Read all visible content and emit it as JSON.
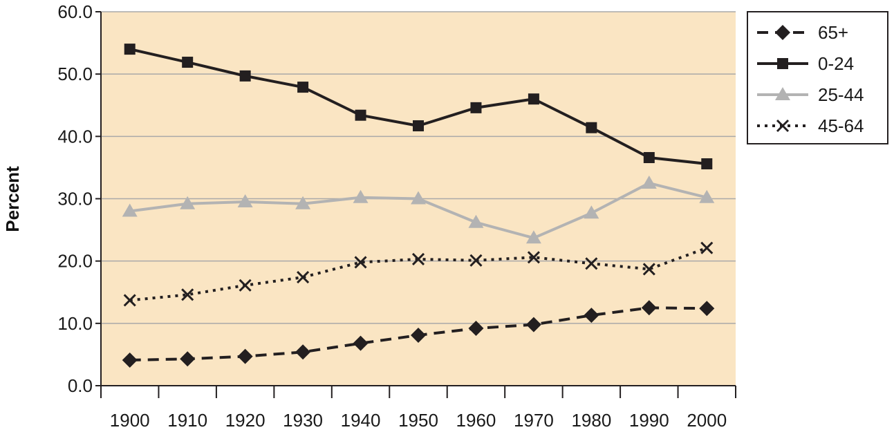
{
  "colors": {
    "plot_background": "#fae5c3",
    "gridline": "#a9a9a9",
    "axis": "#231f20",
    "dark_series": "#231f20",
    "light_series": "#b3b3b3"
  },
  "chart_data": {
    "type": "line",
    "title": "",
    "xlabel": "",
    "ylabel": "Percent",
    "ylim": [
      0,
      60
    ],
    "yticks": [
      "0.0",
      "10.0",
      "20.0",
      "30.0",
      "40.0",
      "50.0",
      "60.0"
    ],
    "x": [
      "1900",
      "1910",
      "1920",
      "1930",
      "1940",
      "1950",
      "1960",
      "1970",
      "1980",
      "1990",
      "2000"
    ],
    "grid": true,
    "legend_position": "top-right",
    "series": [
      {
        "name": "65+",
        "values": [
          4.1,
          4.3,
          4.7,
          5.4,
          6.8,
          8.1,
          9.2,
          9.8,
          11.3,
          12.5,
          12.4
        ],
        "color": "#231f20",
        "line_style": "dashed",
        "marker": "diamond"
      },
      {
        "name": "0-24",
        "values": [
          54.0,
          51.9,
          49.7,
          47.9,
          43.4,
          41.7,
          44.6,
          46.0,
          41.4,
          36.6,
          35.6
        ],
        "color": "#231f20",
        "line_style": "solid",
        "marker": "square"
      },
      {
        "name": "25-44",
        "values": [
          28.0,
          29.2,
          29.5,
          29.2,
          30.2,
          30.0,
          26.2,
          23.7,
          27.7,
          32.5,
          30.2
        ],
        "color": "#b3b3b3",
        "line_style": "solid",
        "marker": "triangle"
      },
      {
        "name": "45-64",
        "values": [
          13.7,
          14.6,
          16.1,
          17.4,
          19.8,
          20.3,
          20.1,
          20.6,
          19.6,
          18.7,
          22.1
        ],
        "color": "#231f20",
        "line_style": "dotted",
        "marker": "x"
      }
    ]
  }
}
